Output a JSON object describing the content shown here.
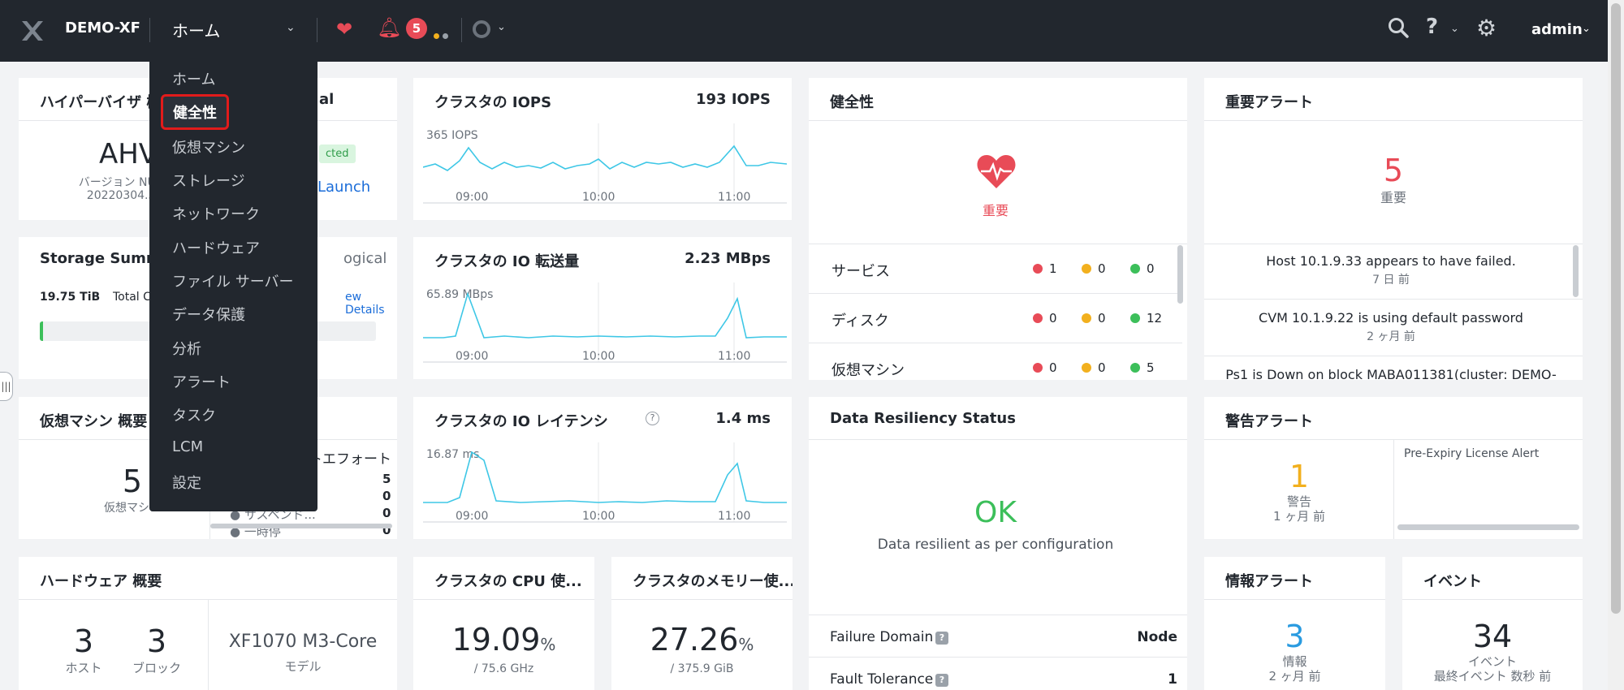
{
  "topbar": {
    "cluster_name": "DEMO-XF",
    "nav_current": "ホーム",
    "alert_count": "5",
    "user": "admin",
    "colors": {
      "bg": "#22272e",
      "critical": "#e84b57",
      "warning": "#f2b01e"
    }
  },
  "menu": {
    "items": [
      "ホーム",
      "健全性",
      "仮想マシン",
      "ストレージ",
      "ネットワーク",
      "ハードウェア",
      "ファイル サーバー",
      "データ保護",
      "分析",
      "アラート",
      "タスク",
      "LCM",
      "設定"
    ],
    "selected_index": 1
  },
  "hypervisor": {
    "title": "ハイパーバイザ 概要",
    "title_tail": "al",
    "name": "AHV",
    "version_line1": "バージョン NUTAN",
    "version_line2": "20220304.511",
    "status": "cted",
    "launch": "Launch"
  },
  "iops": {
    "title": "クラスタの IOPS",
    "value": "193 IOPS",
    "peak": "365 IOPS",
    "ticks": [
      "09:00",
      "10:00",
      "11:00"
    ]
  },
  "io_throughput": {
    "title": "クラスタの IO 転送量",
    "value": "2.23 MBps",
    "peak": "65.89 MBps",
    "ticks": [
      "09:00",
      "10:00",
      "11:00"
    ]
  },
  "io_latency": {
    "title": "クラスタの IO レイテンシ",
    "value": "1.4 ms",
    "peak": "16.87 ms",
    "ticks": [
      "09:00",
      "10:00",
      "11:00"
    ]
  },
  "health": {
    "title": "健全性",
    "state": "重要",
    "rows": [
      {
        "label": "サービス",
        "critical": "1",
        "warning": "0",
        "good": "0"
      },
      {
        "label": "ディスク",
        "critical": "0",
        "warning": "0",
        "good": "12"
      },
      {
        "label": "仮想マシン",
        "critical": "0",
        "warning": "0",
        "good": "5"
      }
    ]
  },
  "critical_alerts": {
    "title": "重要アラート",
    "count": "5",
    "count_label": "重要",
    "items": [
      {
        "text": "Host 10.1.9.33 appears to have failed.",
        "time": "7 日 前"
      },
      {
        "text": "CVM 10.1.9.22 is using default password",
        "time": "2 ヶ月 前"
      },
      {
        "text": "Ps1 is Down on block MABA011381(cluster: DEMO-",
        "time": ""
      }
    ]
  },
  "storage": {
    "title": "Storage Summar",
    "logical": "ogical",
    "capacity_value": "19.75 TiB",
    "capacity_label": "Total Capa",
    "view_details": "ew Details"
  },
  "vm_summary": {
    "title": "仮想マシン 概要",
    "count": "5",
    "count_label": "仮想マシン",
    "col_header": "ストエフォート",
    "values": [
      "5",
      "0",
      "0",
      "0"
    ],
    "row_suspended": "サスペンド...",
    "row_paused": "一時停"
  },
  "resiliency": {
    "title": "Data Resiliency Status",
    "status": "OK",
    "message": "Data resilient as per configuration",
    "rows": [
      {
        "label": "Failure Domain",
        "value": "Node"
      },
      {
        "label": "Fault Tolerance",
        "value": "1"
      }
    ]
  },
  "warning_alerts": {
    "title": "警告アラート",
    "count": "1",
    "count_label": "警告",
    "time": "1 ヶ月 前",
    "item": "Pre-Expiry License Alert"
  },
  "hardware": {
    "title": "ハードウェア 概要",
    "hosts": "3",
    "hosts_label": "ホスト",
    "blocks": "3",
    "blocks_label": "ブロック",
    "model": "XF1070 M3-Core",
    "model_label": "モデル"
  },
  "cpu": {
    "title": "クラスタの CPU 使...",
    "value": "19.09",
    "unit": "%",
    "total": "/ 75.6 GHz"
  },
  "memory": {
    "title": "クラスタのメモリー使...",
    "value": "27.26",
    "unit": "%",
    "total": "/ 375.9 GiB"
  },
  "info_alerts": {
    "title": "情報アラート",
    "count": "3",
    "count_label": "情報",
    "time": "2 ヶ月 前"
  },
  "events": {
    "title": "イベント",
    "count": "34",
    "count_label": "イベント",
    "time": "最終イベント 数秒 前"
  }
}
